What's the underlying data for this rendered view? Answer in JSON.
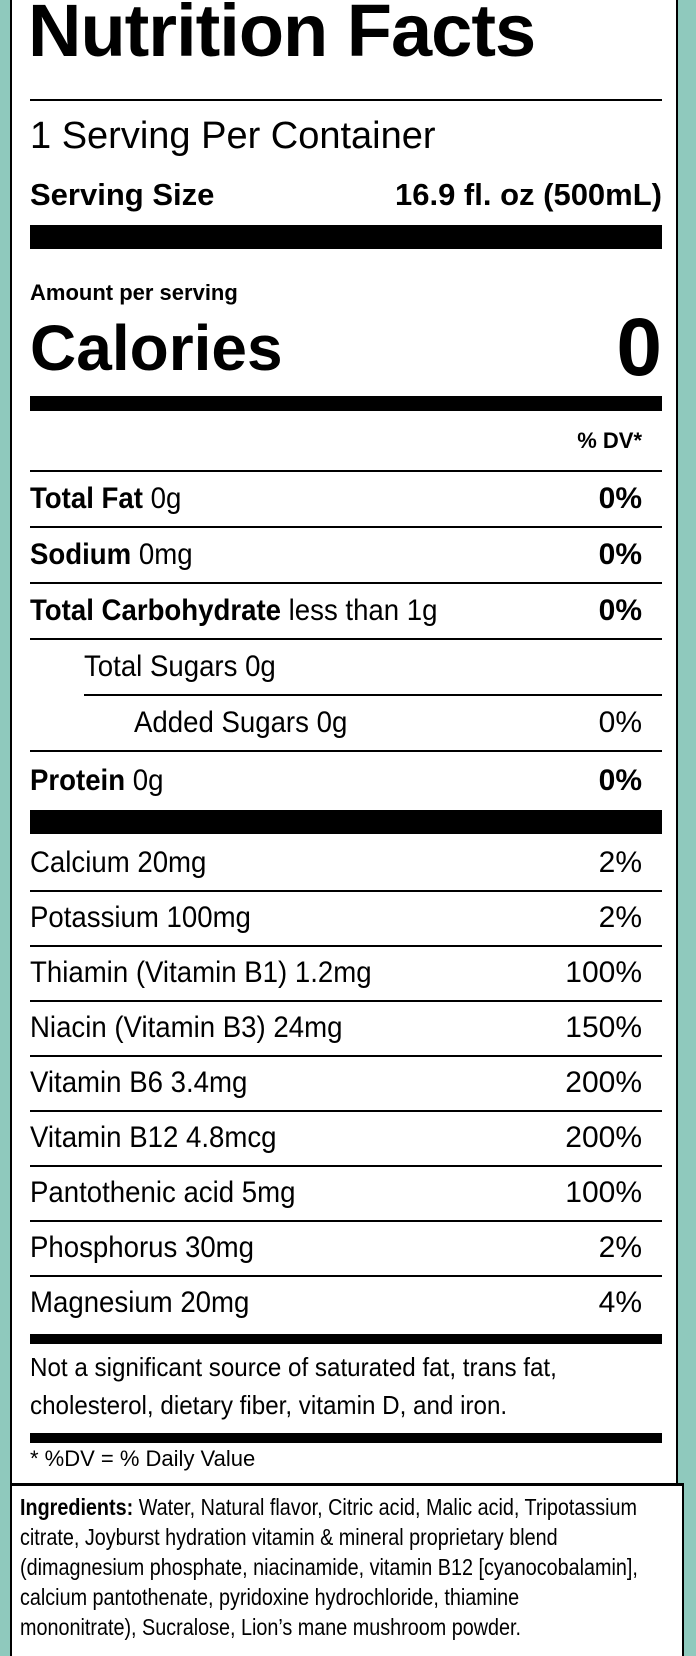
{
  "title": "Nutrition Facts",
  "servings_per_container": "1 Serving Per Container",
  "serving_size_label": "Serving Size",
  "serving_size_value": "16.9 fl. oz (500mL)",
  "amount_per_serving": "Amount per serving",
  "calories_label": "Calories",
  "calories_value": "0",
  "dv_header": "% DV*",
  "nutrients": [
    {
      "name": "Total Fat",
      "amount": "0g",
      "dv": "0%"
    },
    {
      "name": "Sodium",
      "amount": "0mg",
      "dv": "0%"
    },
    {
      "name": "Total Carbohydrate",
      "amount": "less than 1g",
      "dv": "0%"
    },
    {
      "name": "Total Sugars 0g",
      "amount": "",
      "dv": ""
    },
    {
      "name": "Added Sugars 0g",
      "amount": "",
      "dv": "0%"
    },
    {
      "name": "Protein",
      "amount": "0g",
      "dv": "0%"
    }
  ],
  "vitamins": [
    {
      "label": "Calcium 20mg",
      "dv": "2%"
    },
    {
      "label": "Potassium 100mg",
      "dv": "2%"
    },
    {
      "label": "Thiamin (Vitamin B1) 1.2mg",
      "dv": "100%"
    },
    {
      "label": "Niacin (Vitamin B3) 24mg",
      "dv": "150%"
    },
    {
      "label": "Vitamin B6 3.4mg",
      "dv": "200%"
    },
    {
      "label": "Vitamin B12 4.8mcg",
      "dv": "200%"
    },
    {
      "label": "Pantothenic acid 5mg",
      "dv": "100%"
    },
    {
      "label": "Phosphorus 30mg",
      "dv": "2%"
    },
    {
      "label": "Magnesium 20mg",
      "dv": "4%"
    }
  ],
  "not_significant_line1": "Not a significant source of saturated fat, trans fat,",
  "not_significant_line2": "cholesterol, dietary fiber, vitamin D, and iron.",
  "dv_footnote": "* %DV = % Daily Value",
  "ingredients_label": "Ingredients:",
  "ingredients_text": "Water, Natural flavor, Citric acid, Malic acid, Tripotassium citrate, Joyburst hydration vitamin & mineral proprietary blend (dimagnesium phosphate, niacinamide, vitamin B12 [cyanocobalamin], calcium pantothenate, pyridoxine hydrochloride, thiamine mononitrate), Sucralose, Lion’s mane mushroom powder.",
  "colors": {
    "background": "#8fc9bd",
    "panel": "#ffffff",
    "ink": "#000000"
  }
}
